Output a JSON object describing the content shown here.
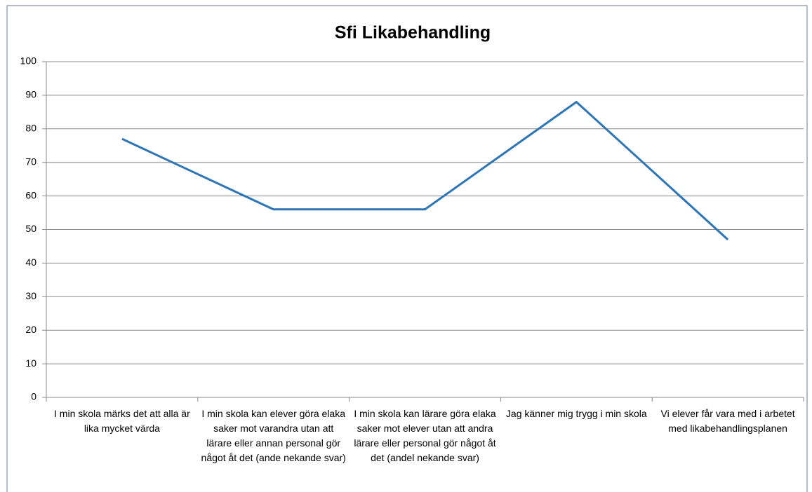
{
  "chart_data": {
    "type": "line",
    "title": "Sfi Likabehandling",
    "categories": [
      "I min skola märks det att alla är lika mycket värda",
      "I min skola kan elever göra elaka saker mot varandra utan att lärare eller annan personal gör något åt det (ande nekande svar)",
      "I min skola kan lärare göra elaka saker mot elever utan att andra lärare eller personal gör något åt det (andel nekande svar)",
      "Jag känner mig trygg i min skola",
      "Vi elever får vara med i arbetet med likabehandlingsplanen"
    ],
    "values": [
      77,
      56,
      56,
      88,
      47
    ],
    "color": "#2e75b6",
    "ylim": [
      0,
      100
    ],
    "yticks": [
      0,
      10,
      20,
      30,
      40,
      50,
      60,
      70,
      80,
      90,
      100
    ],
    "grid": true
  }
}
